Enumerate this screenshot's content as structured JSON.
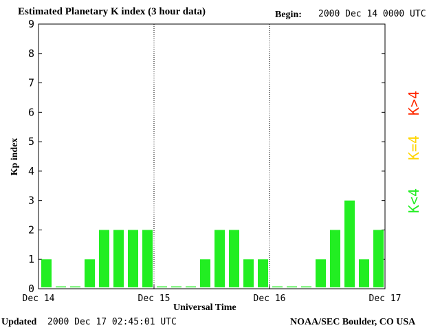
{
  "header": {
    "title": "Estimated Planetary K index (3 hour data)",
    "begin_label": "Begin:",
    "begin_value": "2000 Dec 14 0000 UTC"
  },
  "footer": {
    "updated_label": "Updated",
    "updated_value": "2000 Dec 17 02:45:01 UTC",
    "source": "NOAA/SEC Boulder, CO USA"
  },
  "legend": [
    {
      "label": "K>4",
      "color": "#ff2a00"
    },
    {
      "label": "K=4",
      "color": "#ffd500"
    },
    {
      "label": "K<4",
      "color": "#22ee22"
    }
  ],
  "chart_data": {
    "type": "bar",
    "title": "Estimated Planetary K index (3 hour data)",
    "xlabel": "Universal Time",
    "ylabel": "Kp index",
    "ylim": [
      0,
      9
    ],
    "yticks": [
      0,
      1,
      2,
      3,
      4,
      5,
      6,
      7,
      8,
      9
    ],
    "xtick_labels": [
      "Dec 14",
      "Dec 15",
      "Dec 16",
      "Dec 17"
    ],
    "day_separators": [
      "Dec 15",
      "Dec 16"
    ],
    "bar_color": "#22ee22",
    "values": [
      1,
      0,
      0,
      1,
      2,
      2,
      2,
      2,
      0,
      0,
      0,
      1,
      2,
      2,
      1,
      1,
      0,
      0,
      0,
      1,
      2,
      3,
      1,
      2
    ]
  }
}
